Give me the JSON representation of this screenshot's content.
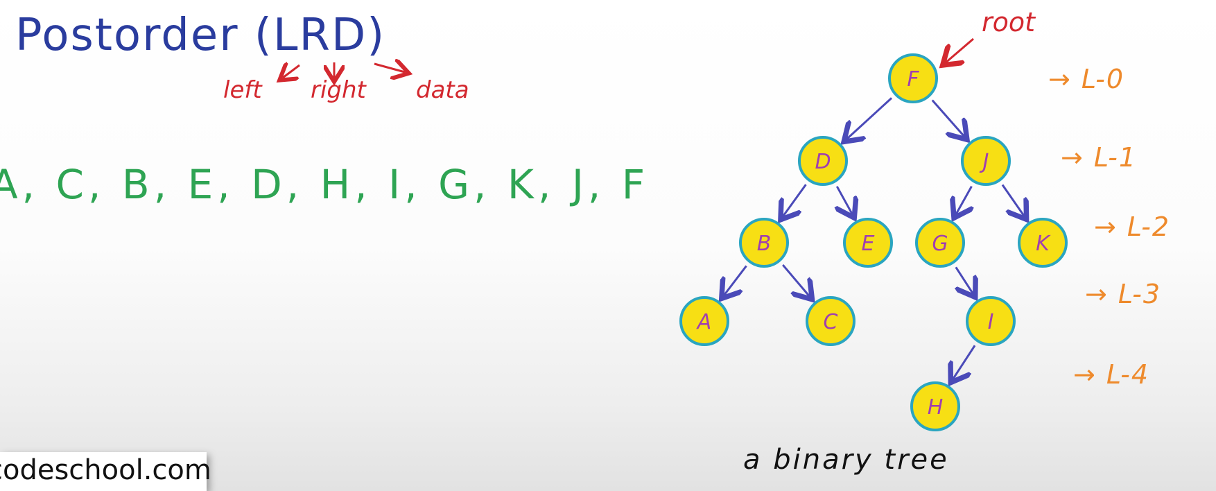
{
  "title": "Postorder (LRD)",
  "subtitle": {
    "left": "left",
    "right": "right",
    "data": "data"
  },
  "sequence": "A, C, B, E, D, H, I, G, K, J, F",
  "root_label": "root",
  "caption": "a binary tree",
  "watermark": "codeschool.com",
  "colors": {
    "title": "#2a3c9e",
    "subtitle": "#d3282f",
    "sequence": "#2ea453",
    "node_fill": "#f7df14",
    "node_border": "#2aa5c0",
    "node_text": "#a03fb0",
    "edge": "#4a4ab8",
    "level": "#ee8a2c"
  },
  "tree": {
    "nodes": [
      {
        "id": "F",
        "label": "F",
        "level": 0
      },
      {
        "id": "D",
        "label": "D",
        "level": 1
      },
      {
        "id": "J",
        "label": "J",
        "level": 1
      },
      {
        "id": "B",
        "label": "B",
        "level": 2
      },
      {
        "id": "E",
        "label": "E",
        "level": 2
      },
      {
        "id": "G",
        "label": "G",
        "level": 2
      },
      {
        "id": "K",
        "label": "K",
        "level": 2
      },
      {
        "id": "A",
        "label": "A",
        "level": 3
      },
      {
        "id": "C",
        "label": "C",
        "level": 3
      },
      {
        "id": "I",
        "label": "I",
        "level": 3
      },
      {
        "id": "H",
        "label": "H",
        "level": 4
      }
    ],
    "edges": [
      [
        "F",
        "D"
      ],
      [
        "F",
        "J"
      ],
      [
        "D",
        "B"
      ],
      [
        "D",
        "E"
      ],
      [
        "J",
        "G"
      ],
      [
        "J",
        "K"
      ],
      [
        "B",
        "A"
      ],
      [
        "B",
        "C"
      ],
      [
        "G",
        "I"
      ],
      [
        "I",
        "H"
      ]
    ],
    "levels": [
      "→ L-0",
      "→ L-1",
      "→ L-2",
      "→ L-3",
      "→ L-4"
    ]
  }
}
